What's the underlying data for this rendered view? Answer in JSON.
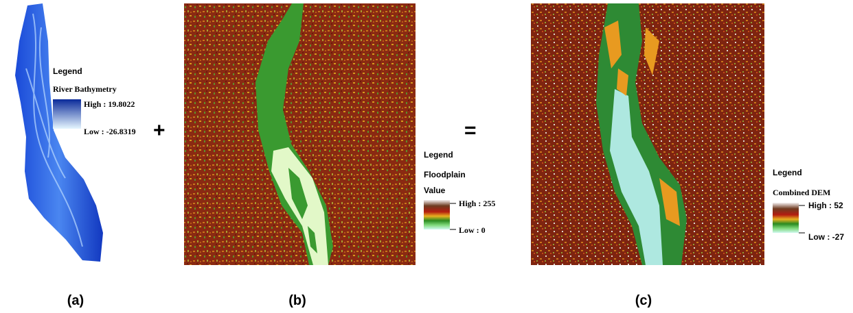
{
  "panels": [
    {
      "legend": {
        "title": "Legend",
        "layer": "River Bathymetry",
        "high": "High : 19.8022",
        "low": "Low : -26.8319"
      },
      "caption": "(a)"
    },
    {
      "legend": {
        "title": "Legend",
        "layer": "Floodplain",
        "field": "Value",
        "high": "High : 255",
        "low": "Low : 0"
      },
      "caption": "(b)"
    },
    {
      "legend": {
        "title": "Legend",
        "layer": "Combined DEM",
        "high": "High : 52",
        "low": "Low : -27"
      },
      "caption": "(c)"
    }
  ],
  "operators": [
    "+",
    "="
  ]
}
